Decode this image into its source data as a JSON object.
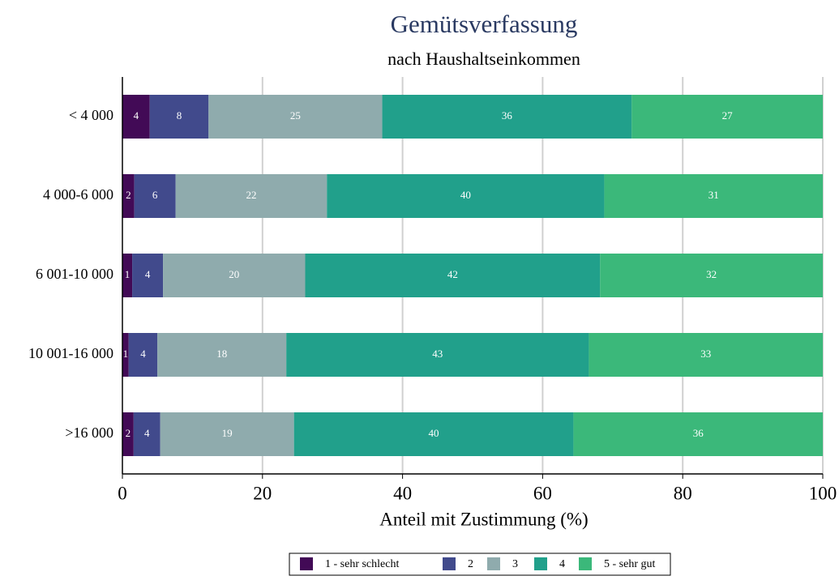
{
  "chart_data": {
    "type": "stacked-barh",
    "title": "Gemütsverfassung",
    "subtitle": "nach Haushaltseinkommen",
    "xlabel": "Anteil mit Zustimmung (%)",
    "categories": [
      "< 4 000",
      "4 000-6 000",
      "6 001-10 000",
      "10 001-16 000",
      ">16 000"
    ],
    "series": [
      {
        "name": "1 - sehr schlecht",
        "color": "#420a56",
        "values": [
          3.9,
          1.7,
          1.4,
          0.9,
          1.6
        ],
        "value_labels": [
          "4",
          "2",
          "1",
          "1",
          "2"
        ]
      },
      {
        "name": "2",
        "color": "#414a8c",
        "values": [
          8.4,
          5.9,
          4.4,
          4.1,
          3.8
        ],
        "value_labels": [
          "8",
          "6",
          "4",
          "4",
          "4"
        ]
      },
      {
        "name": "3",
        "color": "#8fabad",
        "values": [
          24.8,
          21.6,
          20.3,
          18.4,
          19.1
        ],
        "value_labels": [
          "25",
          "22",
          "20",
          "18",
          "19"
        ]
      },
      {
        "name": "4",
        "color": "#21a08b",
        "values": [
          35.6,
          39.6,
          42.1,
          43.2,
          39.9
        ],
        "value_labels": [
          "36",
          "40",
          "42",
          "43",
          "40"
        ]
      },
      {
        "name": "5 - sehr gut",
        "color": "#3bb87a",
        "values": [
          27.3,
          31.2,
          31.8,
          33.4,
          35.6
        ],
        "value_labels": [
          "27",
          "31",
          "32",
          "33",
          "36"
        ]
      }
    ],
    "xlim": [
      0,
      100
    ],
    "xticks": [
      0,
      20,
      40,
      60,
      80,
      100
    ],
    "grid": true,
    "legend": "bottom"
  }
}
